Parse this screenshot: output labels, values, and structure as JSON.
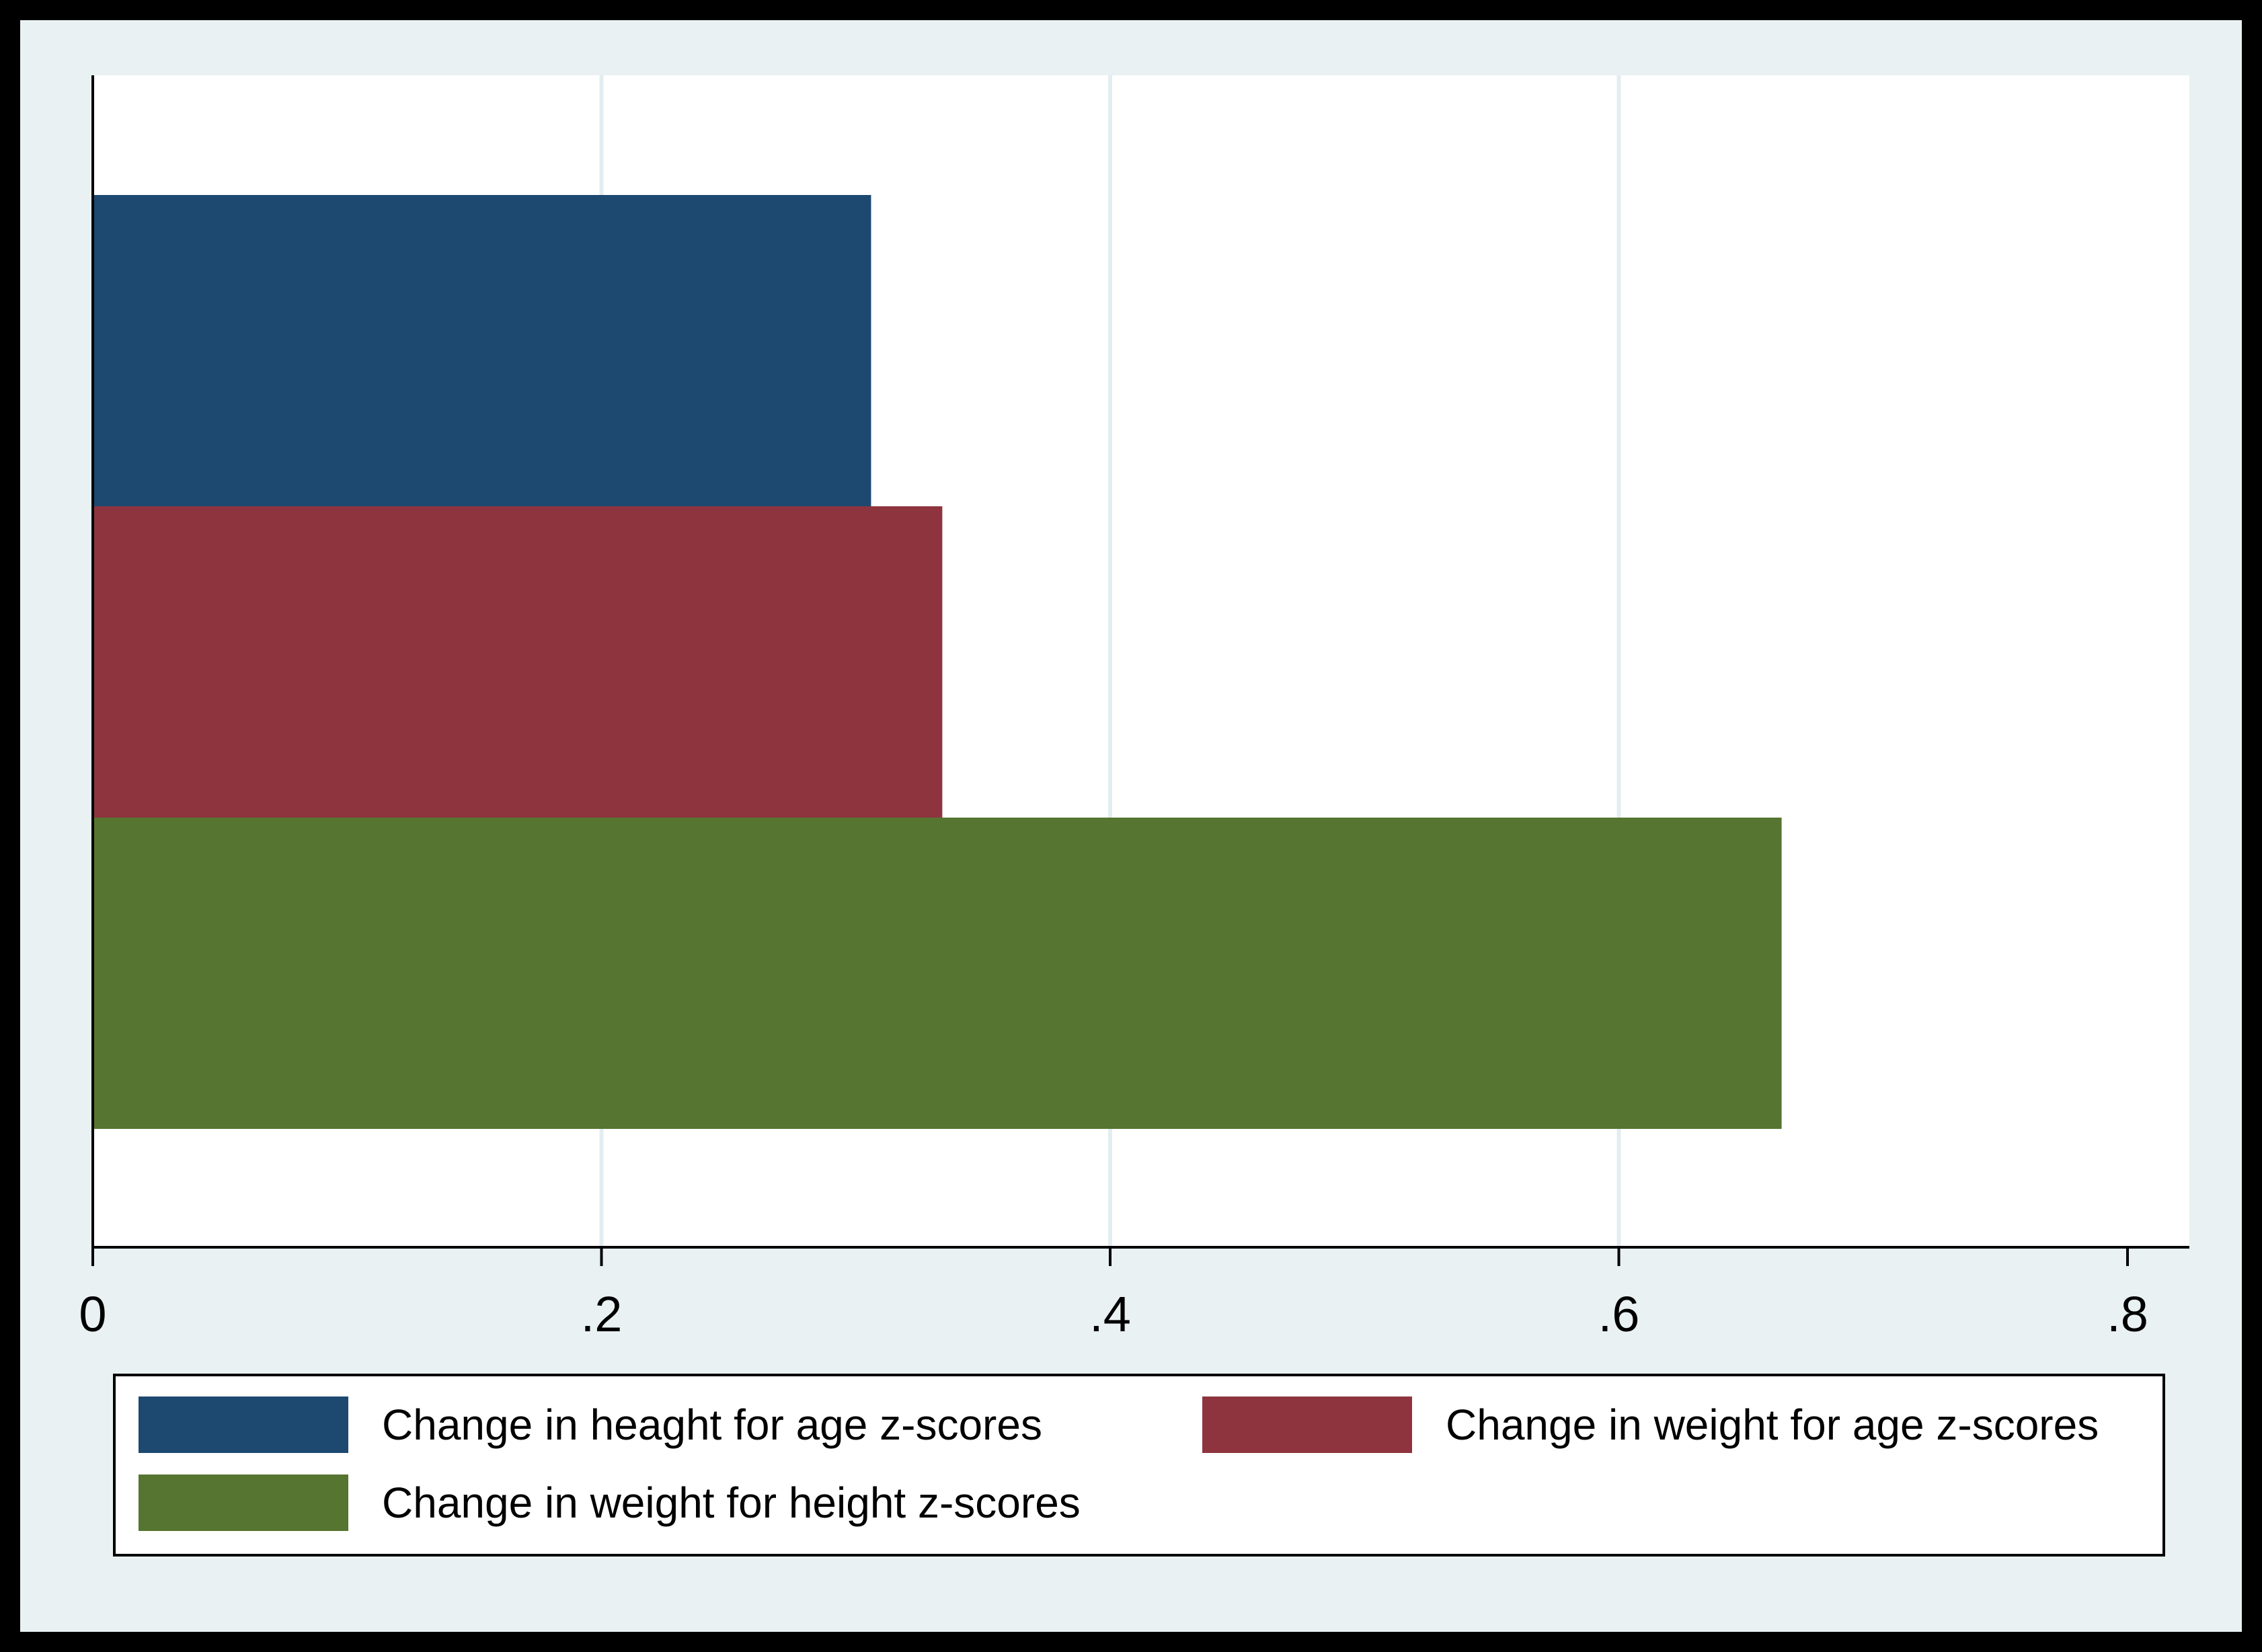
{
  "chart_data": {
    "type": "bar",
    "orientation": "horizontal",
    "xlim": [
      0,
      0.8
    ],
    "grid": true,
    "legend_position": "bottom",
    "ticks": [
      {
        "value": 0,
        "label": "0"
      },
      {
        "value": 0.2,
        "label": ".2"
      },
      {
        "value": 0.4,
        "label": ".4"
      },
      {
        "value": 0.6,
        "label": ".6"
      },
      {
        "value": 0.8,
        "label": ".8"
      }
    ],
    "series": [
      {
        "name": "Change in heaght for age z-scores",
        "value": 0.306,
        "color": "#1d4870"
      },
      {
        "name": "Change in weight for age z-scores",
        "value": 0.334,
        "color": "#8e343e"
      },
      {
        "name": "Change in weight for height z-scores",
        "value": 0.664,
        "color": "#567530"
      }
    ]
  }
}
